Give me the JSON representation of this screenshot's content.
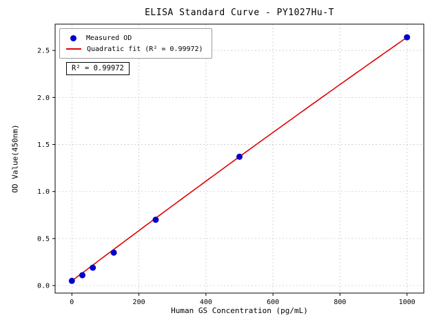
{
  "figure": {
    "background": "#ffffff"
  },
  "chart_data": {
    "type": "scatter",
    "title": "ELISA Standard Curve - PY1027Hu-T",
    "xlabel": "Human GS Concentration (pg/mL)",
    "ylabel": "OD Value(450nm)",
    "xlim": [
      -50,
      1050
    ],
    "ylim": [
      -0.08,
      2.78
    ],
    "xticks": [
      0,
      200,
      400,
      600,
      800,
      1000
    ],
    "xtick_labels": [
      "0",
      "200",
      "400",
      "600",
      "800",
      "1000"
    ],
    "yticks": [
      0,
      0.5,
      1,
      1.5,
      2,
      2.5
    ],
    "ytick_labels": [
      "0.0",
      "0.5",
      "1.0",
      "1.5",
      "2.0",
      "2.5"
    ],
    "grid": true,
    "grid_color": "#c9c9c9",
    "axis_color": "#000000",
    "legend_position": "upper-left",
    "series": [
      {
        "name": "Measured OD",
        "type": "scatter",
        "color": "#0000cd",
        "x": [
          0,
          31.25,
          62.5,
          125,
          250,
          500,
          1000
        ],
        "y": [
          0.05,
          0.11,
          0.19,
          0.35,
          0.7,
          1.37,
          2.64
        ],
        "marker_radius": 4.5
      },
      {
        "name": "Quadratic fit (R² = 0.99972)",
        "type": "line",
        "color": "#e00000",
        "line_width": 1.6,
        "fit": {
          "kind": "quadratic",
          "a": -1e-07,
          "b": 0.00269,
          "c": 0.05,
          "x_start": 0,
          "x_end": 1000
        }
      }
    ],
    "annotation": {
      "text": "R² = 0.99972"
    },
    "r_squared": 0.99972
  }
}
